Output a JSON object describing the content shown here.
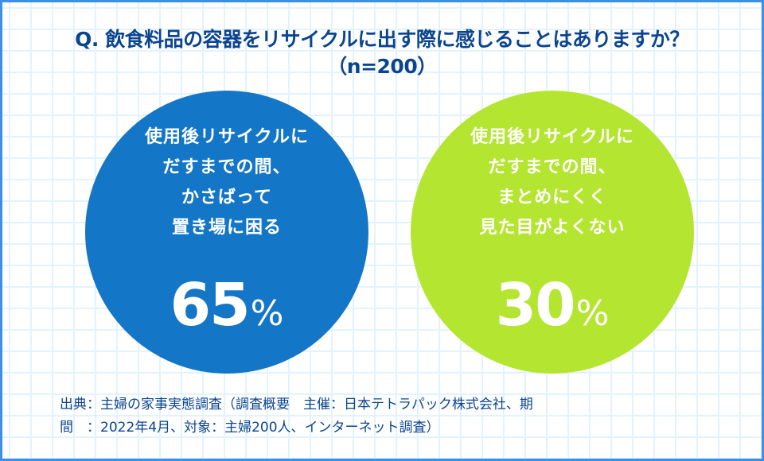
{
  "title": {
    "line1": "Q. 飲食料品の容器をリサイクルに出す際に感じることはありますか？",
    "line2": "（n=200）"
  },
  "items": [
    {
      "label_lines": [
        "使用後リサイクルに",
        "だすまでの間、",
        "かさばって",
        "置き場に困る"
      ],
      "value": "65",
      "unit": "%",
      "color": "#1476c6"
    },
    {
      "label_lines": [
        "使用後リサイクルに",
        "だすまでの間、",
        "まとめにくく",
        "見た目がよくない"
      ],
      "value": "30",
      "unit": "%",
      "color": "#b4e530"
    }
  ],
  "source": {
    "line1": "出典：主婦の家事実態調査（調査概要　主催：日本テトラパック株式会社、期",
    "line2": "間　：2022年4月、対象：主婦200人、インターネット調査）"
  },
  "colors": {
    "title_text": "#0b4590",
    "border": "#3a8fe6",
    "grid": "#e3f3fd",
    "circle_blue": "#1476c6",
    "circle_green": "#b4e530"
  },
  "chart_data": {
    "type": "bubble",
    "title": "Q. 飲食料品の容器をリサイクルに出す際に感じることはありますか？（n=200）",
    "categories": [
      "使用後リサイクルにだすまでの間、かさばって置き場に困る",
      "使用後リサイクルにだすまでの間、まとめにくく見た目がよくない"
    ],
    "values": [
      65,
      30
    ],
    "unit": "%",
    "n": 200,
    "source": "主婦の家事実態調査（主催：日本テトラパック株式会社、期間：2022年4月、対象：主婦200人、インターネット調査）"
  }
}
